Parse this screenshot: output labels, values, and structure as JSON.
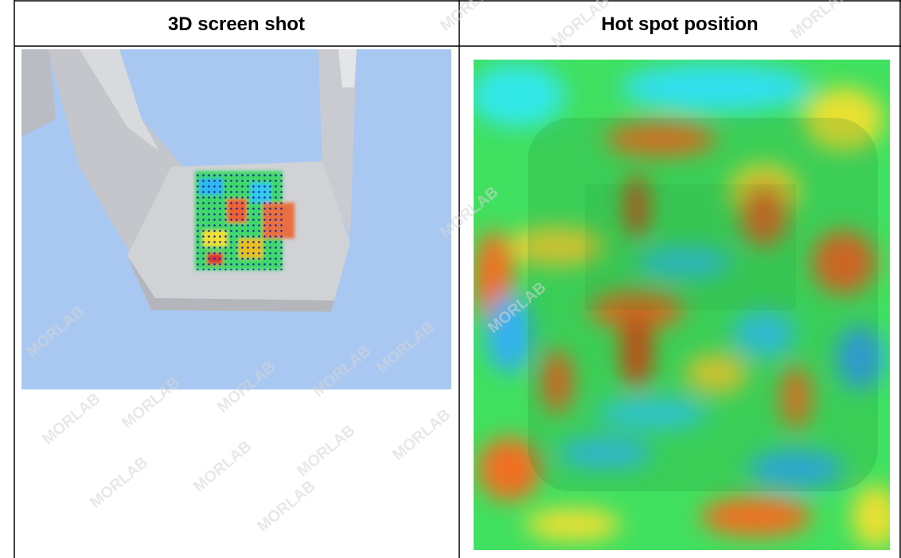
{
  "table": {
    "headers": [
      "3D screen shot",
      "Hot spot position"
    ]
  },
  "watermark": "MORLAB"
}
